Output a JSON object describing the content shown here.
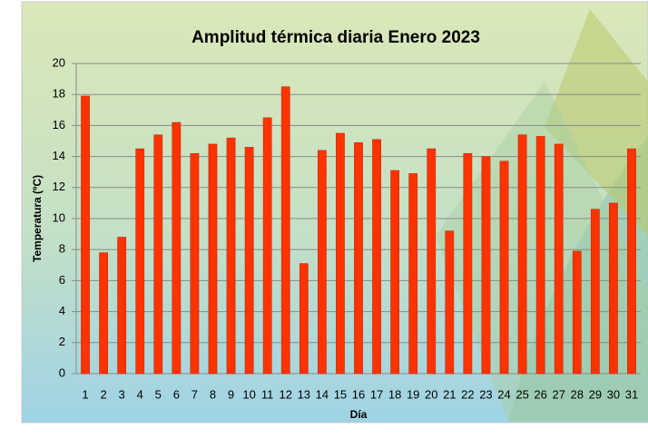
{
  "chart_data": {
    "type": "bar",
    "title": "Amplitud térmica diaria Enero 2023",
    "x_label": "Día",
    "y_label": "Temperatura (ºC)",
    "categories": [
      "1",
      "2",
      "3",
      "4",
      "5",
      "6",
      "7",
      "8",
      "9",
      "10",
      "11",
      "12",
      "13",
      "14",
      "15",
      "16",
      "17",
      "18",
      "19",
      "20",
      "21",
      "22",
      "23",
      "24",
      "25",
      "26",
      "27",
      "28",
      "29",
      "30",
      "31"
    ],
    "values": [
      17.9,
      7.8,
      8.8,
      14.5,
      15.4,
      16.2,
      14.2,
      14.8,
      15.2,
      14.6,
      16.5,
      18.5,
      7.1,
      14.4,
      15.5,
      14.9,
      15.1,
      13.1,
      12.9,
      14.5,
      9.2,
      14.2,
      14.0,
      13.7,
      15.4,
      15.3,
      14.8,
      7.9,
      10.6,
      11.0,
      14.5
    ],
    "color": "#ff3300",
    "ylim": [
      0,
      20
    ],
    "yticks": [
      0,
      2,
      4,
      6,
      8,
      10,
      12,
      14,
      16,
      18,
      20
    ],
    "grid": true
  }
}
